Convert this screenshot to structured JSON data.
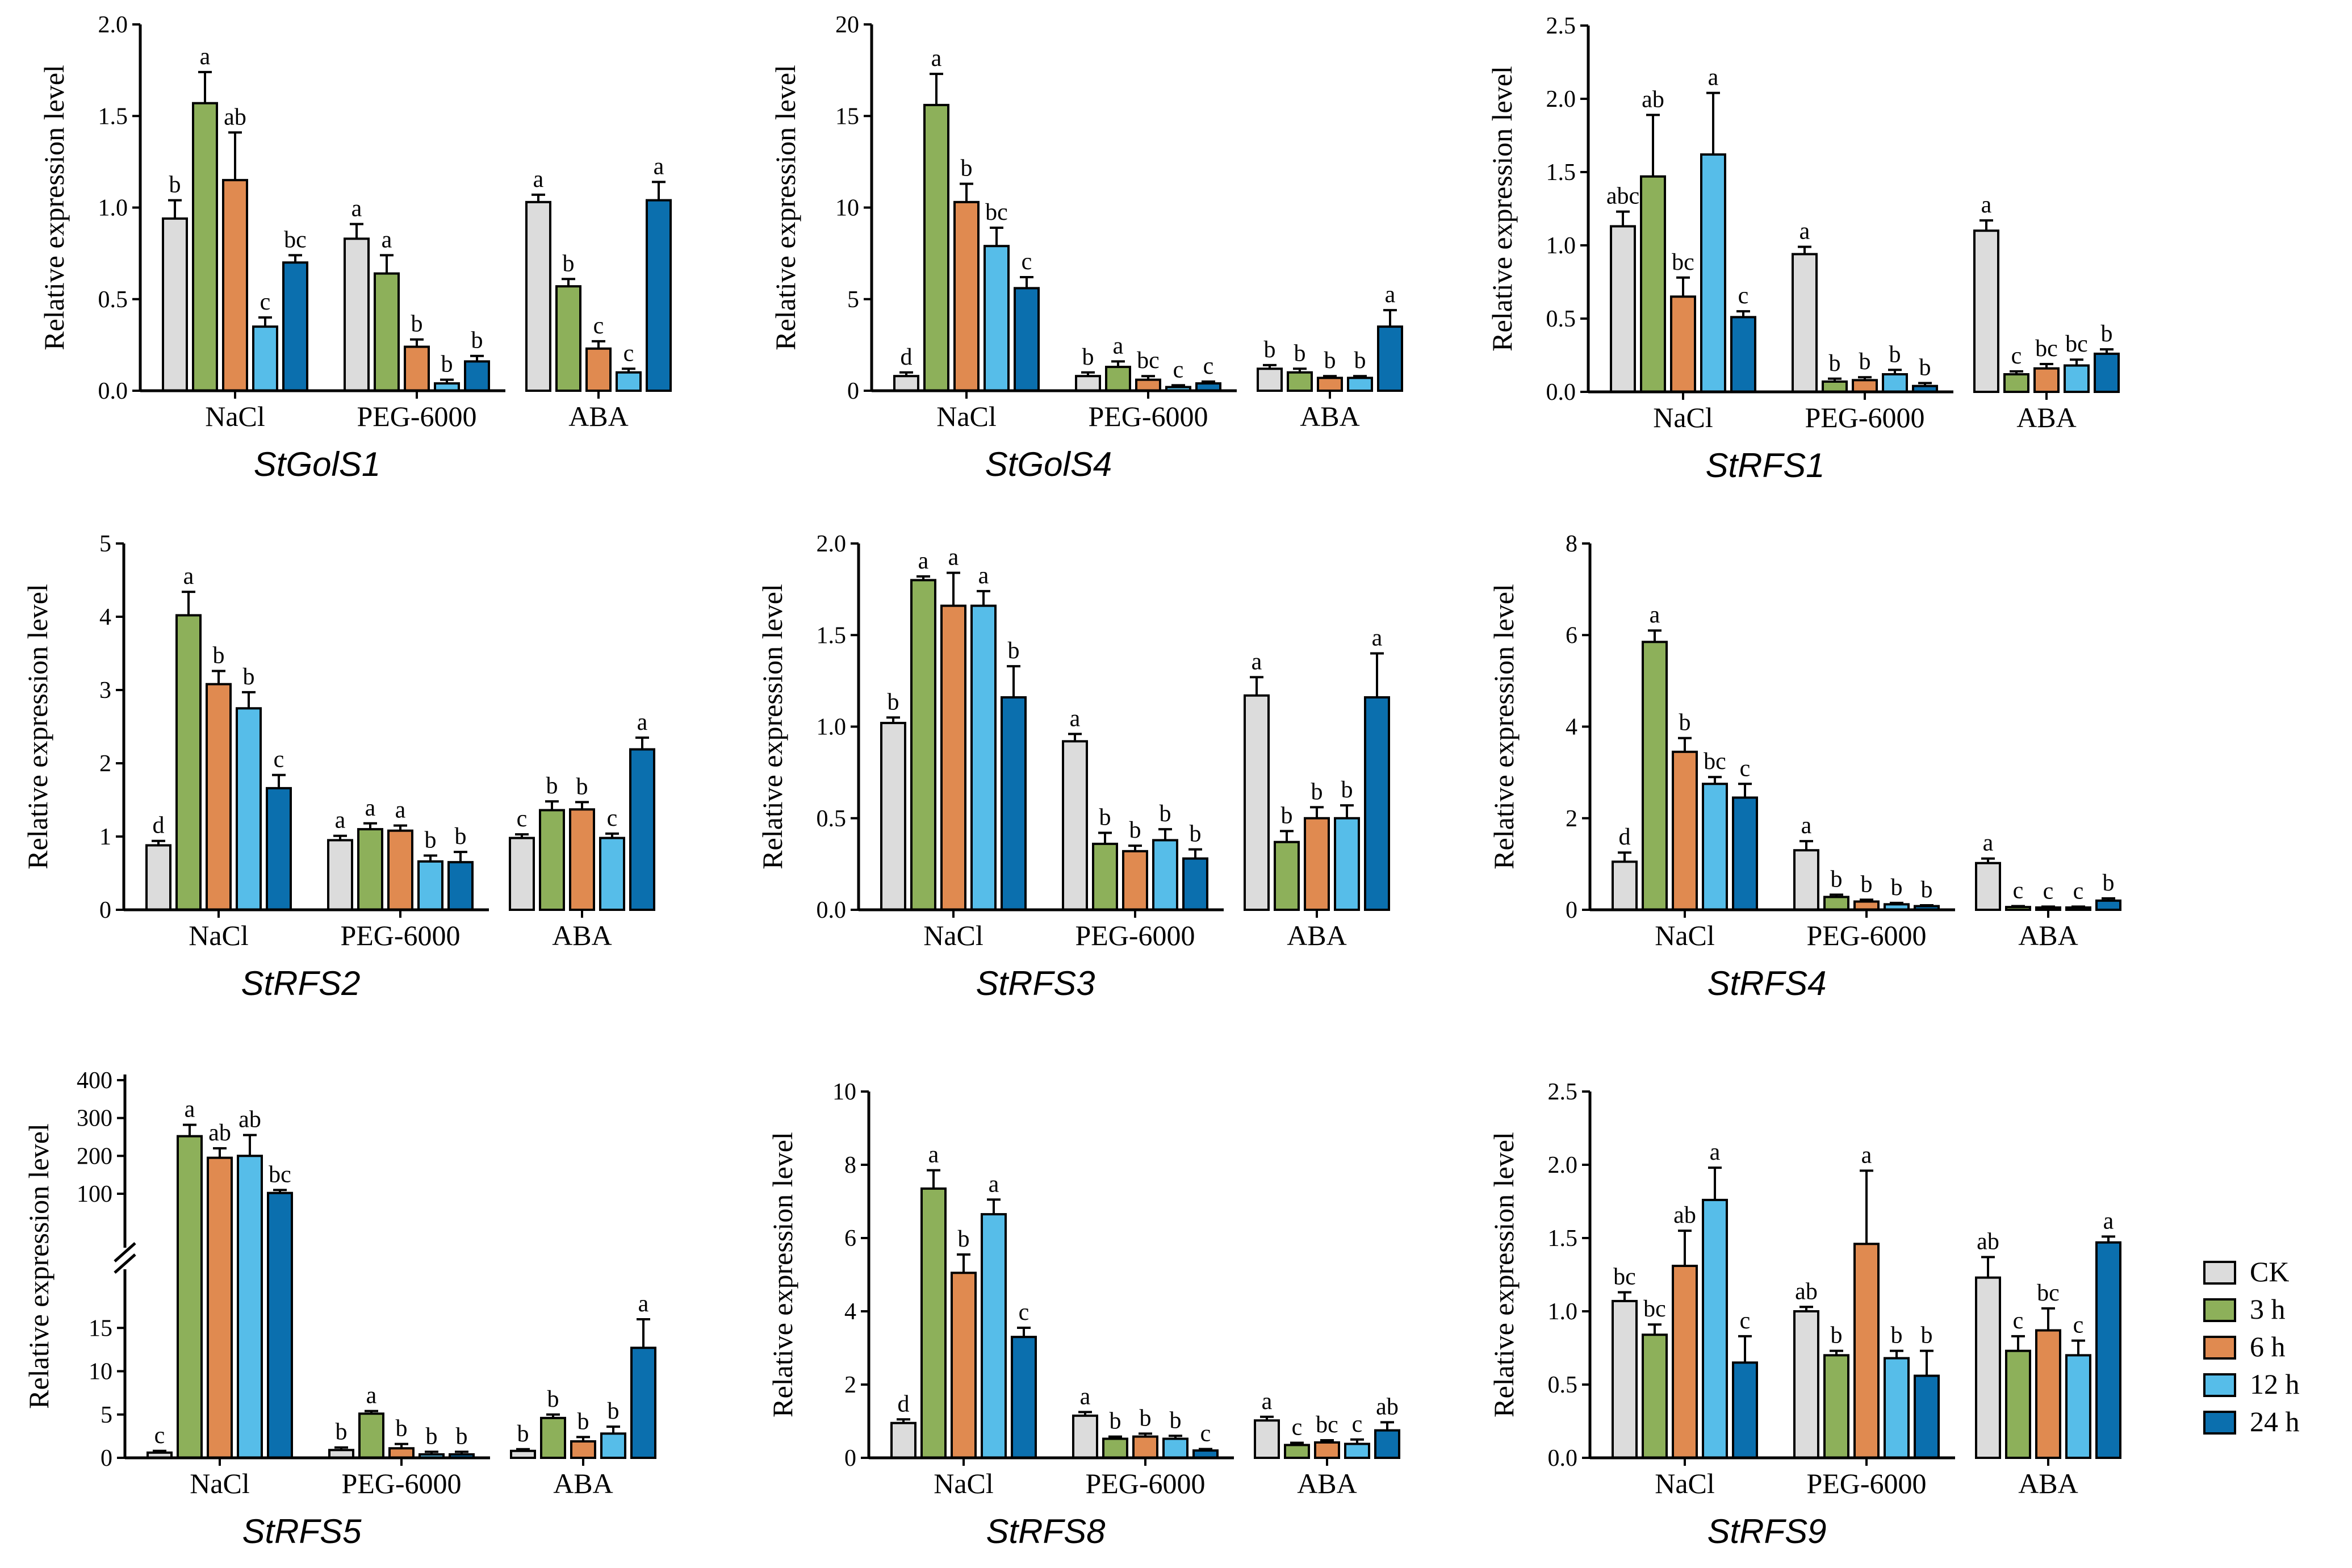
{
  "legend": {
    "items": [
      {
        "label": "CK",
        "color": "#dcdcdc"
      },
      {
        "label": "3 h",
        "color": "#8db05a"
      },
      {
        "label": "6 h",
        "color": "#e08a50"
      },
      {
        "label": "12 h",
        "color": "#56bde9"
      },
      {
        "label": "24 h",
        "color": "#0b6fae"
      }
    ]
  },
  "chart_data": [
    {
      "type": "bar",
      "title": "StGolS1",
      "ylabel": "Relative expression level",
      "categories": [
        "NaCl",
        "PEG-6000",
        "ABA"
      ],
      "ylim": [
        0,
        2.0
      ],
      "yticks": [
        0.0,
        0.5,
        1.0,
        1.5,
        2.0
      ],
      "ytick_labels": [
        "0.0",
        "0.5",
        "1.0",
        "1.5",
        "2.0"
      ],
      "series": [
        {
          "name": "CK",
          "values": [
            0.94,
            0.83,
            1.03
          ],
          "errors": [
            0.1,
            0.08,
            0.04
          ],
          "letters": [
            "b",
            "a",
            "a"
          ]
        },
        {
          "name": "3 h",
          "values": [
            1.57,
            0.64,
            0.57
          ],
          "errors": [
            0.17,
            0.1,
            0.04
          ],
          "letters": [
            "a",
            "a",
            "b"
          ]
        },
        {
          "name": "6 h",
          "values": [
            1.15,
            0.24,
            0.23
          ],
          "errors": [
            0.26,
            0.04,
            0.04
          ],
          "letters": [
            "ab",
            "b",
            "c"
          ]
        },
        {
          "name": "12 h",
          "values": [
            0.35,
            0.04,
            0.1
          ],
          "errors": [
            0.05,
            0.02,
            0.02
          ],
          "letters": [
            "c",
            "b",
            "c"
          ]
        },
        {
          "name": "24 h",
          "values": [
            0.7,
            0.16,
            1.04
          ],
          "errors": [
            0.04,
            0.03,
            0.1
          ],
          "letters": [
            "bc",
            "b",
            "a"
          ]
        }
      ]
    },
    {
      "type": "bar",
      "title": "StGolS4",
      "ylabel": "Relative expression level",
      "categories": [
        "NaCl",
        "PEG-6000",
        "ABA"
      ],
      "ylim": [
        0,
        20
      ],
      "yticks": [
        0,
        5,
        10,
        15,
        20
      ],
      "ytick_labels": [
        "0",
        "5",
        "10",
        "15",
        "20"
      ],
      "series": [
        {
          "name": "CK",
          "values": [
            0.8,
            0.8,
            1.2
          ],
          "errors": [
            0.2,
            0.2,
            0.2
          ],
          "letters": [
            "d",
            "b",
            "b"
          ]
        },
        {
          "name": "3 h",
          "values": [
            15.6,
            1.3,
            1.0
          ],
          "errors": [
            1.7,
            0.3,
            0.2
          ],
          "letters": [
            "a",
            "a",
            "b"
          ]
        },
        {
          "name": "6 h",
          "values": [
            10.3,
            0.6,
            0.7
          ],
          "errors": [
            1.0,
            0.2,
            0.1
          ],
          "letters": [
            "b",
            "bc",
            "b"
          ]
        },
        {
          "name": "12 h",
          "values": [
            7.9,
            0.2,
            0.7
          ],
          "errors": [
            1.0,
            0.1,
            0.1
          ],
          "letters": [
            "bc",
            "c",
            "b"
          ]
        },
        {
          "name": "24 h",
          "values": [
            5.6,
            0.4,
            3.5
          ],
          "errors": [
            0.6,
            0.1,
            0.9
          ],
          "letters": [
            "c",
            "c",
            "a"
          ]
        }
      ]
    },
    {
      "type": "bar",
      "title": "StRFS1",
      "ylabel": "Relative expression level",
      "categories": [
        "NaCl",
        "PEG-6000",
        "ABA"
      ],
      "ylim": [
        0,
        2.5
      ],
      "yticks": [
        0.0,
        0.5,
        1.0,
        1.5,
        2.0,
        2.5
      ],
      "ytick_labels": [
        "0.0",
        "0.5",
        "1.0",
        "1.5",
        "2.0",
        "2.5"
      ],
      "series": [
        {
          "name": "CK",
          "values": [
            1.13,
            0.94,
            1.1
          ],
          "errors": [
            0.1,
            0.05,
            0.07
          ],
          "letters": [
            "abc",
            "a",
            "a"
          ]
        },
        {
          "name": "3 h",
          "values": [
            1.47,
            0.07,
            0.12
          ],
          "errors": [
            0.42,
            0.02,
            0.02
          ],
          "letters": [
            "ab",
            "b",
            "c"
          ]
        },
        {
          "name": "6 h",
          "values": [
            0.65,
            0.08,
            0.16
          ],
          "errors": [
            0.13,
            0.02,
            0.03
          ],
          "letters": [
            "bc",
            "b",
            "bc"
          ]
        },
        {
          "name": "12 h",
          "values": [
            1.62,
            0.12,
            0.18
          ],
          "errors": [
            0.42,
            0.03,
            0.04
          ],
          "letters": [
            "a",
            "b",
            "bc"
          ]
        },
        {
          "name": "24 h",
          "values": [
            0.51,
            0.04,
            0.26
          ],
          "errors": [
            0.04,
            0.02,
            0.03
          ],
          "letters": [
            "c",
            "b",
            "b"
          ]
        }
      ]
    },
    {
      "type": "bar",
      "title": "StRFS2",
      "ylabel": "Relative expression level",
      "categories": [
        "NaCl",
        "PEG-6000",
        "ABA"
      ],
      "ylim": [
        0,
        5
      ],
      "yticks": [
        0,
        1,
        2,
        3,
        4,
        5
      ],
      "ytick_labels": [
        "0",
        "1",
        "2",
        "3",
        "4",
        "5"
      ],
      "series": [
        {
          "name": "CK",
          "values": [
            0.88,
            0.95,
            0.98
          ],
          "errors": [
            0.06,
            0.06,
            0.05
          ],
          "letters": [
            "d",
            "a",
            "c"
          ]
        },
        {
          "name": "3 h",
          "values": [
            4.02,
            1.1,
            1.36
          ],
          "errors": [
            0.32,
            0.08,
            0.12
          ],
          "letters": [
            "a",
            "a",
            "b"
          ]
        },
        {
          "name": "6 h",
          "values": [
            3.08,
            1.08,
            1.37
          ],
          "errors": [
            0.18,
            0.07,
            0.1
          ],
          "letters": [
            "b",
            "a",
            "b"
          ]
        },
        {
          "name": "12 h",
          "values": [
            2.75,
            0.66,
            0.98
          ],
          "errors": [
            0.22,
            0.08,
            0.06
          ],
          "letters": [
            "b",
            "b",
            "c"
          ]
        },
        {
          "name": "24 h",
          "values": [
            1.66,
            0.65,
            2.19
          ],
          "errors": [
            0.18,
            0.14,
            0.16
          ],
          "letters": [
            "c",
            "b",
            "a"
          ]
        }
      ]
    },
    {
      "type": "bar",
      "title": "StRFS3",
      "ylabel": "Relative expression level",
      "categories": [
        "NaCl",
        "PEG-6000",
        "ABA"
      ],
      "ylim": [
        0,
        2.0
      ],
      "yticks": [
        0.0,
        0.5,
        1.0,
        1.5,
        2.0
      ],
      "ytick_labels": [
        "0.0",
        "0.5",
        "1.0",
        "1.5",
        "2.0"
      ],
      "series": [
        {
          "name": "CK",
          "values": [
            1.02,
            0.92,
            1.17
          ],
          "errors": [
            0.03,
            0.04,
            0.1
          ],
          "letters": [
            "b",
            "a",
            "a"
          ]
        },
        {
          "name": "3 h",
          "values": [
            1.8,
            0.36,
            0.37
          ],
          "errors": [
            0.02,
            0.06,
            0.06
          ],
          "letters": [
            "a",
            "b",
            "b"
          ]
        },
        {
          "name": "6 h",
          "values": [
            1.66,
            0.32,
            0.5
          ],
          "errors": [
            0.18,
            0.03,
            0.06
          ],
          "letters": [
            "a",
            "b",
            "b"
          ]
        },
        {
          "name": "12 h",
          "values": [
            1.66,
            0.38,
            0.5
          ],
          "errors": [
            0.08,
            0.06,
            0.07
          ],
          "letters": [
            "a",
            "b",
            "b"
          ]
        },
        {
          "name": "24 h",
          "values": [
            1.16,
            0.28,
            1.16
          ],
          "errors": [
            0.17,
            0.05,
            0.24
          ],
          "letters": [
            "b",
            "b",
            "a"
          ]
        }
      ]
    },
    {
      "type": "bar",
      "title": "StRFS4",
      "ylabel": "Relative expression level",
      "categories": [
        "NaCl",
        "PEG-6000",
        "ABA"
      ],
      "ylim": [
        0,
        8
      ],
      "yticks": [
        0,
        2,
        4,
        6,
        8
      ],
      "ytick_labels": [
        "0",
        "2",
        "4",
        "6",
        "8"
      ],
      "series": [
        {
          "name": "CK",
          "values": [
            1.05,
            1.3,
            1.02
          ],
          "errors": [
            0.2,
            0.2,
            0.1
          ],
          "letters": [
            "d",
            "a",
            "a"
          ]
        },
        {
          "name": "3 h",
          "values": [
            5.85,
            0.28,
            0.06
          ],
          "errors": [
            0.25,
            0.05,
            0.02
          ],
          "letters": [
            "a",
            "b",
            "c"
          ]
        },
        {
          "name": "6 h",
          "values": [
            3.45,
            0.18,
            0.05
          ],
          "errors": [
            0.3,
            0.04,
            0.02
          ],
          "letters": [
            "b",
            "b",
            "c"
          ]
        },
        {
          "name": "12 h",
          "values": [
            2.75,
            0.12,
            0.05
          ],
          "errors": [
            0.15,
            0.03,
            0.02
          ],
          "letters": [
            "bc",
            "b",
            "c"
          ]
        },
        {
          "name": "24 h",
          "values": [
            2.45,
            0.08,
            0.2
          ],
          "errors": [
            0.3,
            0.02,
            0.05
          ],
          "letters": [
            "c",
            "b",
            "b"
          ]
        }
      ]
    },
    {
      "type": "bar",
      "title": "StRFS5",
      "ylabel": "Relative expression level",
      "categories": [
        "NaCl",
        "PEG-6000",
        "ABA"
      ],
      "axis_break": {
        "lower_max": 20,
        "upper_min": 50
      },
      "ylim": [
        0,
        400
      ],
      "yticks_lower": [
        0,
        5,
        10,
        15
      ],
      "ytick_labels_lower": [
        "0",
        "5",
        "10",
        "15"
      ],
      "yticks_upper": [
        100,
        200,
        300,
        400
      ],
      "ytick_labels_upper": [
        "100",
        "200",
        "300",
        "400"
      ],
      "series": [
        {
          "name": "CK",
          "values": [
            0.6,
            0.9,
            0.8
          ],
          "errors": [
            0.2,
            0.3,
            0.2
          ],
          "letters": [
            "c",
            "b",
            "b"
          ]
        },
        {
          "name": "3 h",
          "values": [
            252,
            5.1,
            4.6
          ],
          "errors": [
            30,
            0.3,
            0.4
          ],
          "letters": [
            "a",
            "a",
            "b"
          ]
        },
        {
          "name": "6 h",
          "values": [
            195,
            1.1,
            1.9
          ],
          "errors": [
            25,
            0.5,
            0.5
          ],
          "letters": [
            "ab",
            "b",
            "b"
          ]
        },
        {
          "name": "12 h",
          "values": [
            200,
            0.4,
            2.8
          ],
          "errors": [
            55,
            0.3,
            0.8
          ],
          "letters": [
            "ab",
            "b",
            "b"
          ]
        },
        {
          "name": "24 h",
          "values": [
            102,
            0.4,
            12.7
          ],
          "errors": [
            8,
            0.3,
            3.3
          ],
          "letters": [
            "bc",
            "b",
            "a"
          ]
        }
      ]
    },
    {
      "type": "bar",
      "title": "StRFS8",
      "ylabel": "Relative expression level",
      "categories": [
        "NaCl",
        "PEG-6000",
        "ABA"
      ],
      "ylim": [
        0,
        10
      ],
      "yticks": [
        0,
        2,
        4,
        6,
        8,
        10
      ],
      "ytick_labels": [
        "0",
        "2",
        "4",
        "6",
        "8",
        "10"
      ],
      "series": [
        {
          "name": "CK",
          "values": [
            0.95,
            1.15,
            1.02
          ],
          "errors": [
            0.1,
            0.1,
            0.1
          ],
          "letters": [
            "d",
            "a",
            "a"
          ]
        },
        {
          "name": "3 h",
          "values": [
            7.35,
            0.52,
            0.35
          ],
          "errors": [
            0.5,
            0.06,
            0.06
          ],
          "letters": [
            "a",
            "b",
            "c"
          ]
        },
        {
          "name": "6 h",
          "values": [
            5.05,
            0.58,
            0.42
          ],
          "errors": [
            0.5,
            0.08,
            0.06
          ],
          "letters": [
            "b",
            "b",
            "bc"
          ]
        },
        {
          "name": "12 h",
          "values": [
            6.65,
            0.52,
            0.38
          ],
          "errors": [
            0.4,
            0.08,
            0.12
          ],
          "letters": [
            "a",
            "b",
            "c"
          ]
        },
        {
          "name": "24 h",
          "values": [
            3.3,
            0.2,
            0.75
          ],
          "errors": [
            0.25,
            0.04,
            0.22
          ],
          "letters": [
            "c",
            "c",
            "ab"
          ]
        }
      ]
    },
    {
      "type": "bar",
      "title": "StRFS9",
      "ylabel": "Relative expression level",
      "categories": [
        "NaCl",
        "PEG-6000",
        "ABA"
      ],
      "ylim": [
        0,
        2.5
      ],
      "yticks": [
        0.0,
        0.5,
        1.0,
        1.5,
        2.0,
        2.5
      ],
      "ytick_labels": [
        "0.0",
        "0.5",
        "1.0",
        "1.5",
        "2.0",
        "2.5"
      ],
      "series": [
        {
          "name": "CK",
          "values": [
            1.07,
            1.0,
            1.23
          ],
          "errors": [
            0.06,
            0.03,
            0.14
          ],
          "letters": [
            "bc",
            "ab",
            "ab"
          ]
        },
        {
          "name": "3 h",
          "values": [
            0.84,
            0.7,
            0.73
          ],
          "errors": [
            0.07,
            0.03,
            0.1
          ],
          "letters": [
            "bc",
            "b",
            "c"
          ]
        },
        {
          "name": "6 h",
          "values": [
            1.31,
            1.46,
            0.87
          ],
          "errors": [
            0.24,
            0.5,
            0.15
          ],
          "letters": [
            "ab",
            "a",
            "bc"
          ]
        },
        {
          "name": "12 h",
          "values": [
            1.76,
            0.68,
            0.7
          ],
          "errors": [
            0.22,
            0.05,
            0.1
          ],
          "letters": [
            "a",
            "b",
            "c"
          ]
        },
        {
          "name": "24 h",
          "values": [
            0.65,
            0.56,
            1.47
          ],
          "errors": [
            0.18,
            0.17,
            0.04
          ],
          "letters": [
            "c",
            "b",
            "a"
          ]
        }
      ]
    }
  ]
}
